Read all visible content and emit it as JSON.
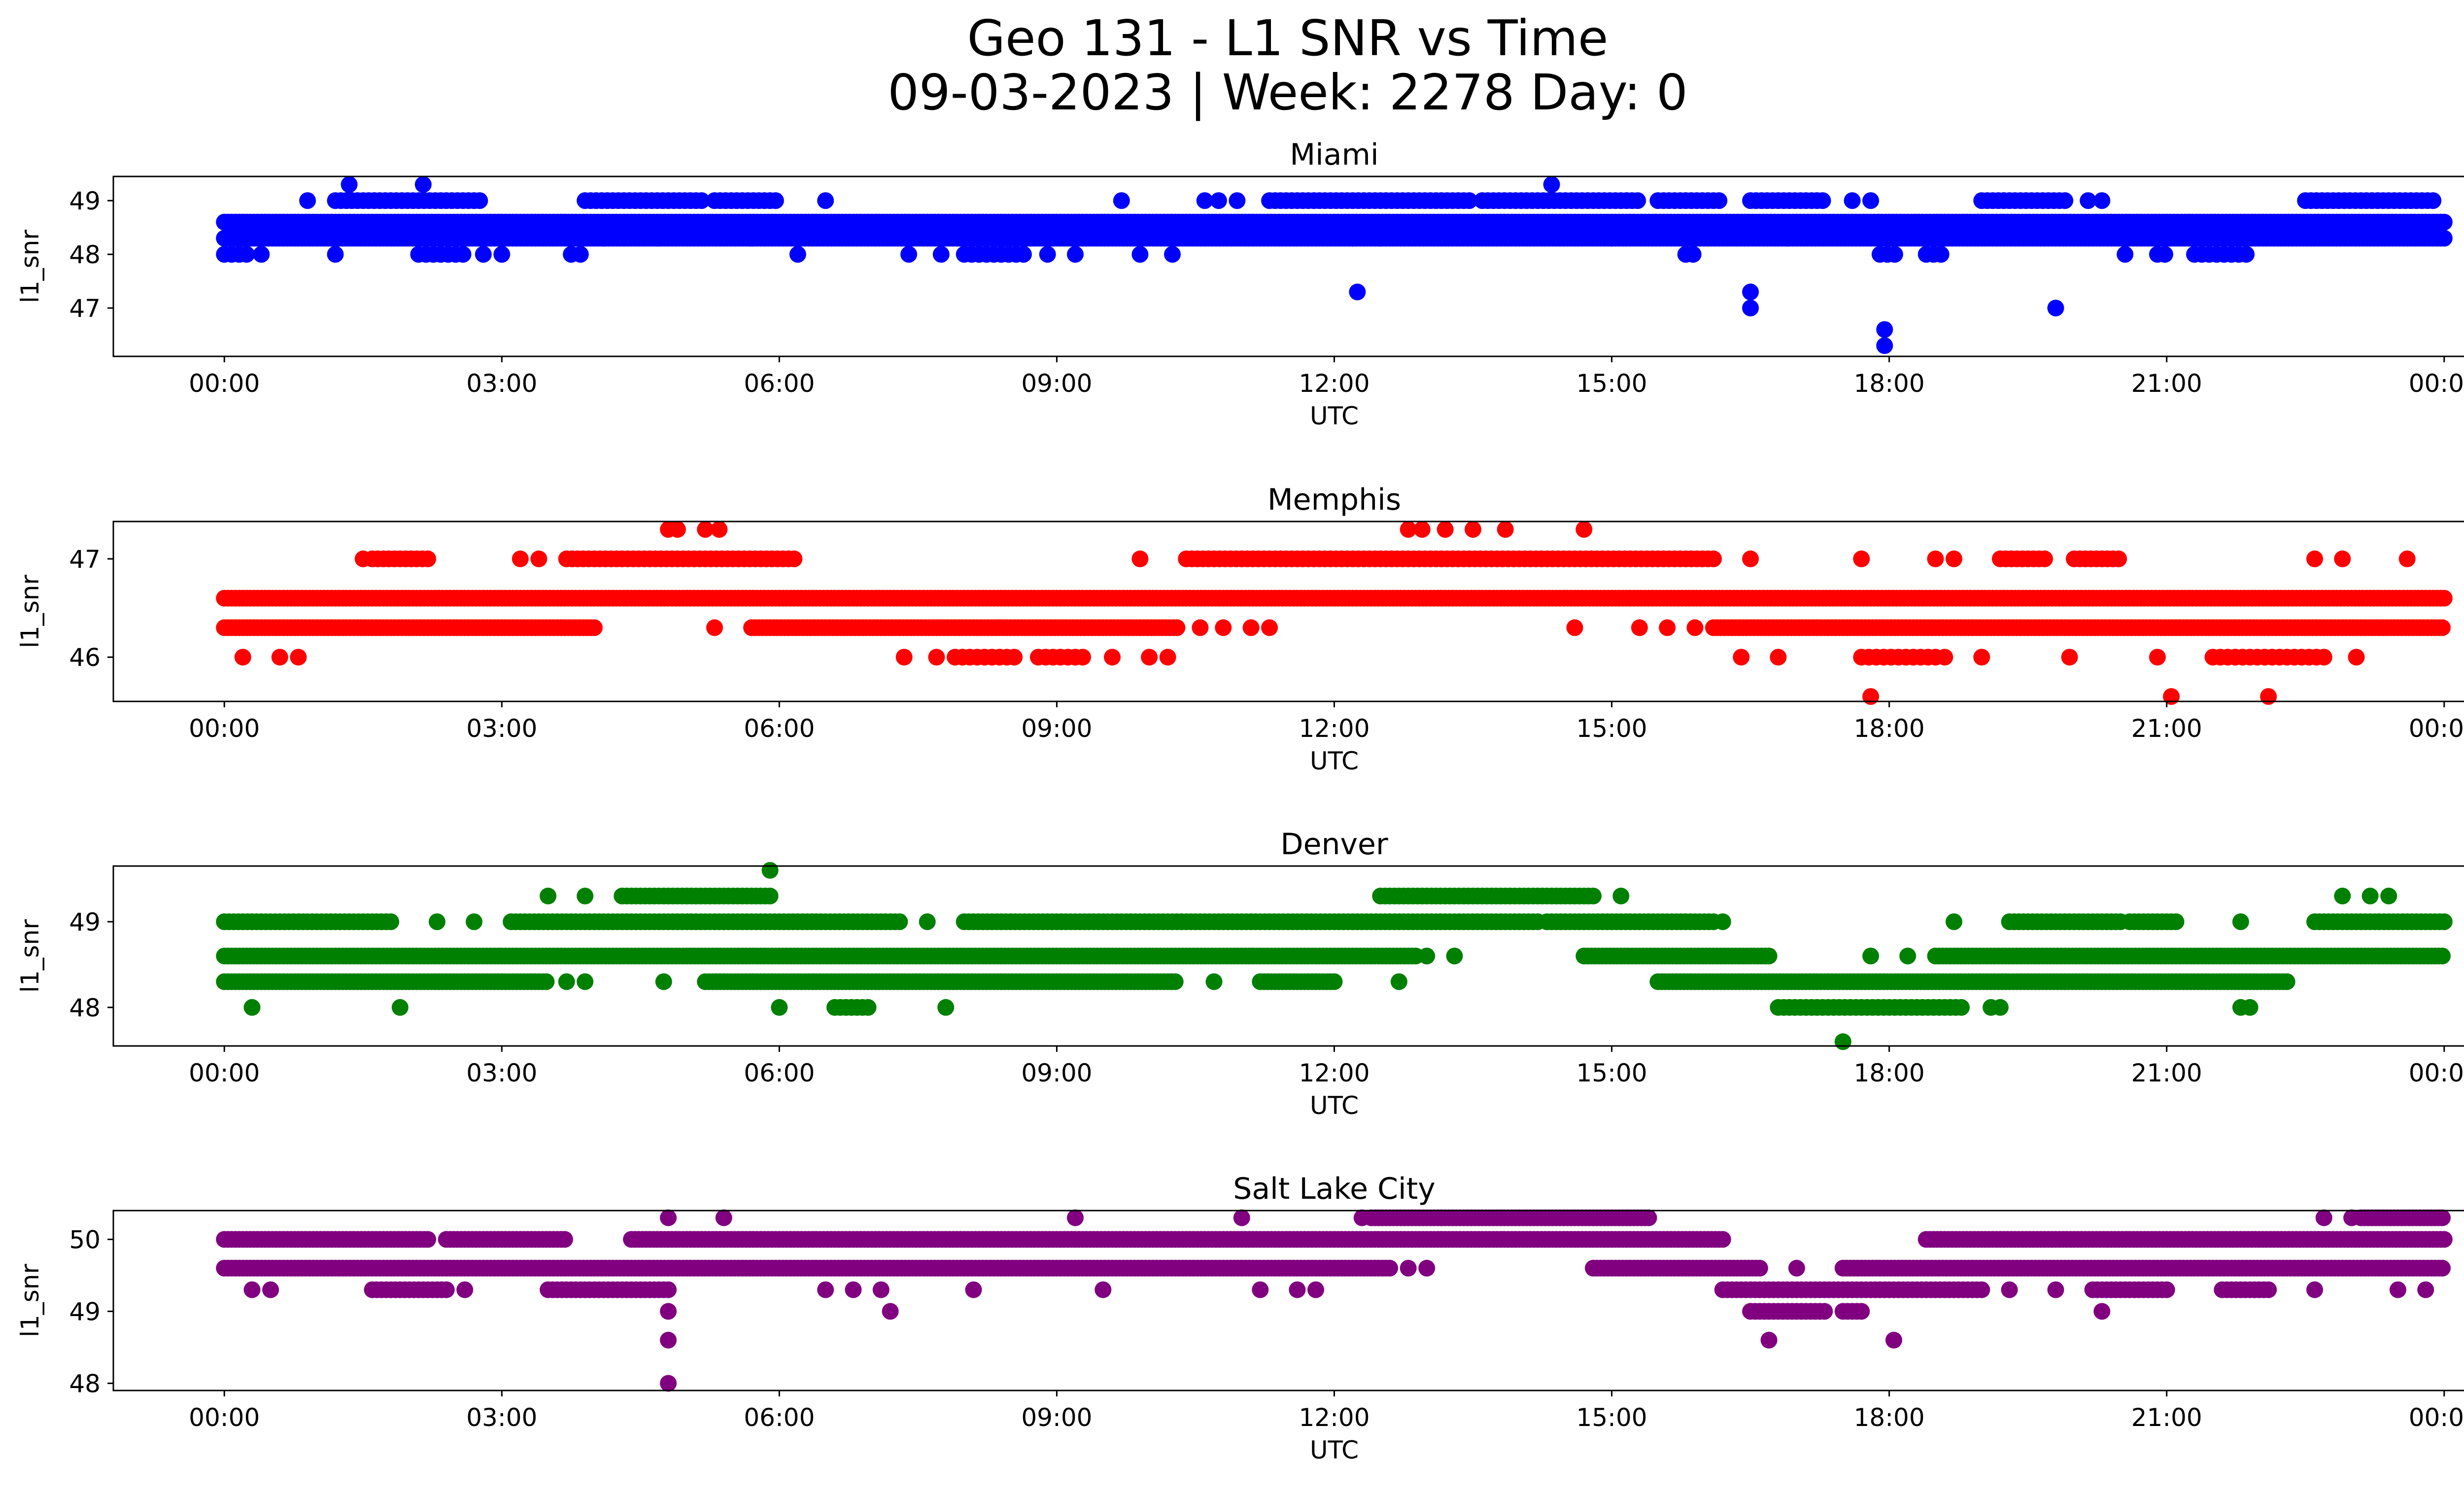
{
  "figure": {
    "title_line1": "Geo 131 - L1 SNR vs Time",
    "title_line2": "09-03-2023 | Week: 2278 Day: 0"
  },
  "chart_data": [
    {
      "type": "scatter",
      "title": "Miami",
      "xlabel": "UTC",
      "ylabel": "l1_snr",
      "color": "#0000ff",
      "xlim": [
        -1.2,
        25.2
      ],
      "ylim": [
        46.1,
        49.45
      ],
      "xticks": [
        0,
        3,
        6,
        9,
        12,
        15,
        18,
        21,
        24
      ],
      "xtick_labels": [
        "00:00",
        "03:00",
        "06:00",
        "09:00",
        "12:00",
        "15:00",
        "18:00",
        "21:00",
        "00:00"
      ],
      "yticks": [
        47,
        48,
        49
      ],
      "ytick_labels": [
        "47",
        "48",
        "49"
      ],
      "bands": [
        {
          "y": 48.6,
          "segments": [
            [
              0,
              24
            ]
          ],
          "spacing": 0.04
        },
        {
          "y": 48.3,
          "segments": [
            [
              0,
              24
            ]
          ],
          "spacing": 0.04
        },
        {
          "y": 49.0,
          "segments": [
            [
              1.2,
              2.8
            ],
            [
              3.9,
              5.2
            ],
            [
              5.3,
              6.0
            ],
            [
              11.3,
              13.5
            ],
            [
              13.6,
              15.3
            ],
            [
              15.5,
              16.2
            ],
            [
              16.5,
              17.3
            ],
            [
              19.0,
              19.9
            ],
            [
              22.5,
              23.9
            ]
          ],
          "spacing": 0.06
        },
        {
          "y": 48.0,
          "segments": [
            [
              0,
              0.3
            ],
            [
              2.1,
              2.6
            ],
            [
              8.0,
              8.7
            ],
            [
              15.8,
              15.9
            ],
            [
              17.9,
              18.1
            ],
            [
              18.4,
              18.6
            ],
            [
              20.9,
              21.0
            ],
            [
              21.3,
              21.9
            ]
          ],
          "spacing": 0.08
        }
      ],
      "points": [
        {
          "x": 0.4,
          "y": 48.0
        },
        {
          "x": 0.9,
          "y": 49.0
        },
        {
          "x": 1.2,
          "y": 48.0
        },
        {
          "x": 1.35,
          "y": 49.3
        },
        {
          "x": 2.15,
          "y": 49.3
        },
        {
          "x": 2.8,
          "y": 48.0
        },
        {
          "x": 3.0,
          "y": 48.0
        },
        {
          "x": 3.75,
          "y": 48.0
        },
        {
          "x": 3.85,
          "y": 48.0
        },
        {
          "x": 4.1,
          "y": 48.3
        },
        {
          "x": 4.7,
          "y": 48.3
        },
        {
          "x": 5.7,
          "y": 48.3
        },
        {
          "x": 6.2,
          "y": 48.0
        },
        {
          "x": 6.5,
          "y": 49.0
        },
        {
          "x": 7.4,
          "y": 48.0
        },
        {
          "x": 7.75,
          "y": 48.0
        },
        {
          "x": 8.9,
          "y": 48.0
        },
        {
          "x": 9.2,
          "y": 48.0
        },
        {
          "x": 9.7,
          "y": 49.0
        },
        {
          "x": 9.9,
          "y": 48.0
        },
        {
          "x": 10.25,
          "y": 48.0
        },
        {
          "x": 10.6,
          "y": 49.0
        },
        {
          "x": 10.75,
          "y": 49.0
        },
        {
          "x": 10.95,
          "y": 49.0
        },
        {
          "x": 12.25,
          "y": 47.3
        },
        {
          "x": 12.2,
          "y": 48.3
        },
        {
          "x": 12.5,
          "y": 48.3
        },
        {
          "x": 14.35,
          "y": 49.3
        },
        {
          "x": 15.0,
          "y": 48.3
        },
        {
          "x": 16.5,
          "y": 47.3
        },
        {
          "x": 16.5,
          "y": 47.0
        },
        {
          "x": 16.9,
          "y": 48.3
        },
        {
          "x": 17.6,
          "y": 49.0
        },
        {
          "x": 17.8,
          "y": 49.0
        },
        {
          "x": 17.95,
          "y": 46.6
        },
        {
          "x": 17.95,
          "y": 46.3
        },
        {
          "x": 19.8,
          "y": 47.0
        },
        {
          "x": 20.15,
          "y": 49.0
        },
        {
          "x": 20.3,
          "y": 49.0
        },
        {
          "x": 20.55,
          "y": 48.0
        }
      ]
    },
    {
      "type": "scatter",
      "title": "Memphis",
      "xlabel": "UTC",
      "ylabel": "l1_snr",
      "color": "#ff0000",
      "xlim": [
        -1.2,
        25.2
      ],
      "ylim": [
        45.55,
        47.38
      ],
      "xticks": [
        0,
        3,
        6,
        9,
        12,
        15,
        18,
        21,
        24
      ],
      "xtick_labels": [
        "00:00",
        "03:00",
        "06:00",
        "09:00",
        "12:00",
        "15:00",
        "18:00",
        "21:00",
        "00:00"
      ],
      "yticks": [
        46,
        47
      ],
      "ytick_labels": [
        "46",
        "47"
      ],
      "bands": [
        {
          "y": 46.6,
          "segments": [
            [
              0,
              24
            ]
          ],
          "spacing": 0.04
        },
        {
          "y": 46.3,
          "segments": [
            [
              0,
              4.0
            ],
            [
              5.7,
              10.3
            ],
            [
              16.1,
              24
            ]
          ],
          "spacing": 0.04
        },
        {
          "y": 47.0,
          "segments": [
            [
              1.6,
              2.2
            ],
            [
              3.7,
              6.2
            ],
            [
              10.4,
              16.1
            ],
            [
              19.2,
              19.7
            ],
            [
              20.0,
              20.5
            ]
          ],
          "spacing": 0.06
        },
        {
          "y": 46.0,
          "segments": [
            [
              7.9,
              8.6
            ],
            [
              8.8,
              9.3
            ],
            [
              17.7,
              18.5
            ],
            [
              21.5,
              22.7
            ]
          ],
          "spacing": 0.08
        }
      ],
      "points": [
        {
          "x": 0.2,
          "y": 46.0
        },
        {
          "x": 0.6,
          "y": 46.0
        },
        {
          "x": 0.8,
          "y": 46.0
        },
        {
          "x": 1.5,
          "y": 47.0
        },
        {
          "x": 3.2,
          "y": 47.0
        },
        {
          "x": 3.4,
          "y": 47.0
        },
        {
          "x": 4.8,
          "y": 47.3
        },
        {
          "x": 4.9,
          "y": 47.3
        },
        {
          "x": 5.2,
          "y": 47.3
        },
        {
          "x": 5.35,
          "y": 47.3
        },
        {
          "x": 5.3,
          "y": 46.3
        },
        {
          "x": 7.35,
          "y": 46.0
        },
        {
          "x": 7.7,
          "y": 46.0
        },
        {
          "x": 9.6,
          "y": 46.0
        },
        {
          "x": 10.0,
          "y": 46.0
        },
        {
          "x": 10.2,
          "y": 46.0
        },
        {
          "x": 9.9,
          "y": 47.0
        },
        {
          "x": 10.55,
          "y": 46.3
        },
        {
          "x": 10.8,
          "y": 46.3
        },
        {
          "x": 11.1,
          "y": 46.3
        },
        {
          "x": 11.3,
          "y": 46.3
        },
        {
          "x": 12.8,
          "y": 47.3
        },
        {
          "x": 12.95,
          "y": 47.3
        },
        {
          "x": 13.2,
          "y": 47.3
        },
        {
          "x": 13.5,
          "y": 47.3
        },
        {
          "x": 13.85,
          "y": 47.3
        },
        {
          "x": 14.7,
          "y": 47.3
        },
        {
          "x": 14.6,
          "y": 46.3
        },
        {
          "x": 15.3,
          "y": 46.3
        },
        {
          "x": 15.6,
          "y": 46.3
        },
        {
          "x": 15.9,
          "y": 46.3
        },
        {
          "x": 16.4,
          "y": 46.0
        },
        {
          "x": 16.5,
          "y": 47.0
        },
        {
          "x": 16.8,
          "y": 46.0
        },
        {
          "x": 17.8,
          "y": 45.6
        },
        {
          "x": 17.7,
          "y": 47.0
        },
        {
          "x": 18.5,
          "y": 47.0
        },
        {
          "x": 18.7,
          "y": 47.0
        },
        {
          "x": 18.6,
          "y": 46.0
        },
        {
          "x": 19.0,
          "y": 46.0
        },
        {
          "x": 19.95,
          "y": 46.0
        },
        {
          "x": 20.9,
          "y": 46.0
        },
        {
          "x": 21.05,
          "y": 45.6
        },
        {
          "x": 22.1,
          "y": 45.6
        },
        {
          "x": 22.6,
          "y": 47.0
        },
        {
          "x": 22.9,
          "y": 47.0
        },
        {
          "x": 23.6,
          "y": 47.0
        },
        {
          "x": 23.05,
          "y": 46.0
        }
      ]
    },
    {
      "type": "scatter",
      "title": "Denver",
      "xlabel": "UTC",
      "ylabel": "l1_snr",
      "color": "#008000",
      "xlim": [
        -1.2,
        25.2
      ],
      "ylim": [
        47.55,
        49.65
      ],
      "xticks": [
        0,
        3,
        6,
        9,
        12,
        15,
        18,
        21,
        24
      ],
      "xtick_labels": [
        "00:00",
        "03:00",
        "06:00",
        "09:00",
        "12:00",
        "15:00",
        "18:00",
        "21:00",
        "00:00"
      ],
      "yticks": [
        48,
        49
      ],
      "ytick_labels": [
        "48",
        "49"
      ],
      "bands": [
        {
          "y": 48.6,
          "segments": [
            [
              0,
              12.9
            ],
            [
              14.7,
              16.7
            ],
            [
              18.5,
              24
            ]
          ],
          "spacing": 0.04
        },
        {
          "y": 48.3,
          "segments": [
            [
              0,
              3.5
            ],
            [
              5.2,
              10.3
            ],
            [
              11.2,
              12.0
            ],
            [
              15.5,
              22.3
            ]
          ],
          "spacing": 0.04
        },
        {
          "y": 49.0,
          "segments": [
            [
              0,
              1.8
            ],
            [
              3.1,
              7.3
            ],
            [
              8.0,
              14.2
            ],
            [
              14.3,
              16.1
            ],
            [
              19.3,
              20.5
            ],
            [
              20.6,
              21.1
            ],
            [
              22.6,
              24
            ]
          ],
          "spacing": 0.05
        },
        {
          "y": 49.3,
          "segments": [
            [
              4.3,
              5.9
            ],
            [
              12.5,
              14.8
            ]
          ],
          "spacing": 0.05
        },
        {
          "y": 48.0,
          "segments": [
            [
              16.8,
              18.8
            ],
            [
              6.6,
              7.0
            ]
          ],
          "spacing": 0.06
        }
      ],
      "points": [
        {
          "x": 0.3,
          "y": 48.0
        },
        {
          "x": 1.9,
          "y": 48.0
        },
        {
          "x": 2.3,
          "y": 49.0
        },
        {
          "x": 2.7,
          "y": 49.0
        },
        {
          "x": 3.5,
          "y": 49.3
        },
        {
          "x": 3.9,
          "y": 49.3
        },
        {
          "x": 3.7,
          "y": 48.3
        },
        {
          "x": 3.9,
          "y": 48.3
        },
        {
          "x": 4.75,
          "y": 48.3
        },
        {
          "x": 5.9,
          "y": 49.6
        },
        {
          "x": 6.0,
          "y": 48.0
        },
        {
          "x": 7.8,
          "y": 48.0
        },
        {
          "x": 7.6,
          "y": 49.0
        },
        {
          "x": 10.7,
          "y": 48.3
        },
        {
          "x": 12.7,
          "y": 48.3
        },
        {
          "x": 13.0,
          "y": 48.6
        },
        {
          "x": 13.3,
          "y": 48.6
        },
        {
          "x": 15.1,
          "y": 49.3
        },
        {
          "x": 16.2,
          "y": 49.0
        },
        {
          "x": 17.5,
          "y": 47.6
        },
        {
          "x": 17.8,
          "y": 48.6
        },
        {
          "x": 18.2,
          "y": 48.6
        },
        {
          "x": 18.7,
          "y": 49.0
        },
        {
          "x": 19.1,
          "y": 48.0
        },
        {
          "x": 19.2,
          "y": 48.0
        },
        {
          "x": 21.9,
          "y": 48.0
        },
        {
          "x": 21.8,
          "y": 48.0
        },
        {
          "x": 21.8,
          "y": 49.0
        },
        {
          "x": 22.9,
          "y": 49.3
        },
        {
          "x": 23.2,
          "y": 49.3
        },
        {
          "x": 23.4,
          "y": 49.3
        }
      ]
    },
    {
      "type": "scatter",
      "title": "Salt Lake City",
      "xlabel": "UTC",
      "ylabel": "l1_snr",
      "color": "#800080",
      "xlim": [
        -1.2,
        25.2
      ],
      "ylim": [
        47.9,
        50.4
      ],
      "xticks": [
        0,
        3,
        6,
        9,
        12,
        15,
        18,
        21,
        24
      ],
      "xtick_labels": [
        "00:00",
        "03:00",
        "06:00",
        "09:00",
        "12:00",
        "15:00",
        "18:00",
        "21:00",
        "00:00"
      ],
      "yticks": [
        48,
        49,
        50
      ],
      "ytick_labels": [
        "48",
        "49",
        "50"
      ],
      "bands": [
        {
          "y": 49.6,
          "segments": [
            [
              0,
              12.6
            ],
            [
              14.8,
              16.6
            ],
            [
              17.5,
              24
            ]
          ],
          "spacing": 0.04
        },
        {
          "y": 50.0,
          "segments": [
            [
              0,
              2.2
            ],
            [
              2.4,
              3.7
            ],
            [
              4.4,
              16.2
            ],
            [
              18.4,
              24
            ]
          ],
          "spacing": 0.04
        },
        {
          "y": 49.3,
          "segments": [
            [
              1.6,
              2.4
            ],
            [
              3.5,
              4.8
            ],
            [
              16.2,
              19.0
            ],
            [
              20.2,
              21.0
            ],
            [
              21.6,
              22.1
            ]
          ],
          "spacing": 0.05
        },
        {
          "y": 50.3,
          "segments": [
            [
              12.4,
              15.4
            ],
            [
              23.1,
              24
            ]
          ],
          "spacing": 0.04
        },
        {
          "y": 49.0,
          "segments": [
            [
              16.5,
              17.3
            ],
            [
              17.5,
              17.7
            ]
          ],
          "spacing": 0.05
        }
      ],
      "points": [
        {
          "x": 0.3,
          "y": 49.3
        },
        {
          "x": 0.5,
          "y": 49.3
        },
        {
          "x": 2.6,
          "y": 49.3
        },
        {
          "x": 4.8,
          "y": 50.3
        },
        {
          "x": 4.8,
          "y": 49.0
        },
        {
          "x": 4.8,
          "y": 48.6
        },
        {
          "x": 4.8,
          "y": 48.0
        },
        {
          "x": 5.4,
          "y": 50.3
        },
        {
          "x": 6.5,
          "y": 49.3
        },
        {
          "x": 6.8,
          "y": 49.3
        },
        {
          "x": 7.2,
          "y": 49.0
        },
        {
          "x": 7.1,
          "y": 49.3
        },
        {
          "x": 8.1,
          "y": 49.3
        },
        {
          "x": 9.2,
          "y": 50.3
        },
        {
          "x": 9.5,
          "y": 49.3
        },
        {
          "x": 11.0,
          "y": 50.3
        },
        {
          "x": 11.2,
          "y": 49.3
        },
        {
          "x": 11.6,
          "y": 49.3
        },
        {
          "x": 11.8,
          "y": 49.3
        },
        {
          "x": 12.3,
          "y": 50.3
        },
        {
          "x": 12.8,
          "y": 49.6
        },
        {
          "x": 13.0,
          "y": 49.6
        },
        {
          "x": 16.7,
          "y": 48.6
        },
        {
          "x": 18.05,
          "y": 48.6
        },
        {
          "x": 17.0,
          "y": 49.6
        },
        {
          "x": 19.3,
          "y": 49.3
        },
        {
          "x": 19.8,
          "y": 49.3
        },
        {
          "x": 20.3,
          "y": 49.0
        },
        {
          "x": 22.7,
          "y": 50.3
        },
        {
          "x": 23.0,
          "y": 50.3
        },
        {
          "x": 22.6,
          "y": 49.3
        },
        {
          "x": 23.5,
          "y": 49.3
        },
        {
          "x": 23.8,
          "y": 49.3
        }
      ]
    }
  ]
}
